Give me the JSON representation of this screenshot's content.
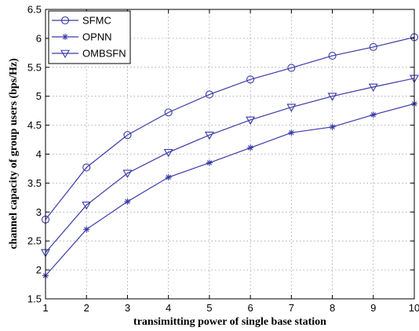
{
  "chart_data": {
    "type": "line",
    "title": "",
    "xlabel": "transimitting power of single base station",
    "ylabel": "channel capacity of group users (bps/Hz)",
    "xlim": [
      1,
      10
    ],
    "ylim": [
      1.5,
      6.5
    ],
    "xticks": [
      "1",
      "2",
      "3",
      "4",
      "5",
      "6",
      "7",
      "8",
      "9",
      "10"
    ],
    "yticks": [
      "1.5",
      "2",
      "2.5",
      "3",
      "3.5",
      "4",
      "4.5",
      "5",
      "5.5",
      "6",
      "6.5"
    ],
    "grid": true,
    "legend_position": "top-left",
    "line_color": "#3a3aa8",
    "x": [
      1,
      2,
      3,
      4,
      5,
      6,
      7,
      8,
      9,
      10
    ],
    "series": [
      {
        "name": "SFMC",
        "marker": "circle",
        "values": [
          2.87,
          3.77,
          4.33,
          4.72,
          5.03,
          5.29,
          5.49,
          5.7,
          5.85,
          6.02
        ]
      },
      {
        "name": "OPNN",
        "marker": "star",
        "values": [
          1.9,
          2.7,
          3.18,
          3.6,
          3.85,
          4.11,
          4.37,
          4.47,
          4.68,
          4.87
        ]
      },
      {
        "name": "OMBSFN",
        "marker": "triangle-down",
        "values": [
          2.3,
          3.12,
          3.67,
          4.03,
          4.33,
          4.59,
          4.81,
          5.0,
          5.16,
          5.31
        ]
      }
    ]
  }
}
